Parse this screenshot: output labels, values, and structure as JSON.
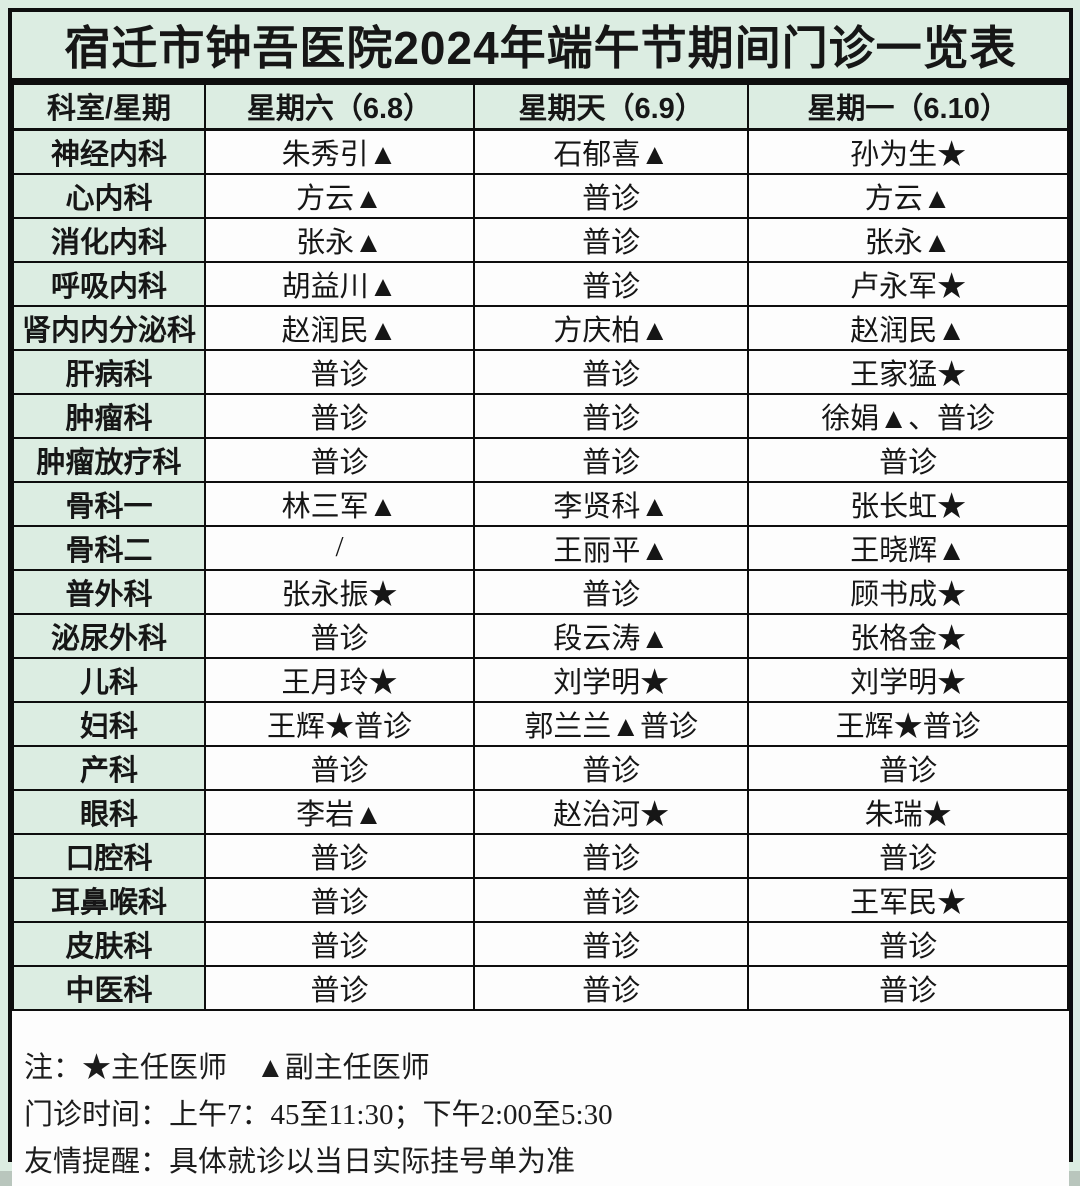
{
  "title": "宿迁市钟吾医院2024年端午节期间门诊一览表",
  "table": {
    "headers": {
      "dept": "科室/星期",
      "saturday": "星期六（6.8）",
      "sunday": "星期天（6.9）",
      "monday": "星期一（6.10）"
    },
    "rows": [
      {
        "dept": "神经内科",
        "cells": [
          "朱秀引▲",
          "石郁喜▲",
          "孙为生★"
        ]
      },
      {
        "dept": "心内科",
        "cells": [
          "方云▲",
          "普诊",
          "方云▲"
        ]
      },
      {
        "dept": "消化内科",
        "cells": [
          "张永▲",
          "普诊",
          "张永▲"
        ]
      },
      {
        "dept": "呼吸内科",
        "cells": [
          "胡益川▲",
          "普诊",
          "卢永军★"
        ]
      },
      {
        "dept": "肾内内分泌科",
        "cells": [
          "赵润民▲",
          "方庆柏▲",
          "赵润民▲"
        ]
      },
      {
        "dept": "肝病科",
        "cells": [
          "普诊",
          "普诊",
          "王家猛★"
        ]
      },
      {
        "dept": "肿瘤科",
        "cells": [
          "普诊",
          "普诊",
          "徐娟▲、普诊"
        ]
      },
      {
        "dept": "肿瘤放疗科",
        "cells": [
          "普诊",
          "普诊",
          "普诊"
        ]
      },
      {
        "dept": "骨科一",
        "cells": [
          "林三军▲",
          "李贤科▲",
          "张长虹★"
        ]
      },
      {
        "dept": "骨科二",
        "cells": [
          "/",
          "王丽平▲",
          "王晓辉▲"
        ]
      },
      {
        "dept": "普外科",
        "cells": [
          "张永振★",
          "普诊",
          "顾书成★"
        ]
      },
      {
        "dept": "泌尿外科",
        "cells": [
          "普诊",
          "段云涛▲",
          "张格金★"
        ]
      },
      {
        "dept": "儿科",
        "cells": [
          "王月玲★",
          "刘学明★",
          "刘学明★"
        ]
      },
      {
        "dept": "妇科",
        "cells": [
          "王辉★普诊",
          "郭兰兰▲普诊",
          "王辉★普诊"
        ]
      },
      {
        "dept": "产科",
        "cells": [
          "普诊",
          "普诊",
          "普诊"
        ]
      },
      {
        "dept": "眼科",
        "cells": [
          "李岩▲",
          "赵治河★",
          "朱瑞★"
        ]
      },
      {
        "dept": "口腔科",
        "cells": [
          "普诊",
          "普诊",
          "普诊"
        ]
      },
      {
        "dept": "耳鼻喉科",
        "cells": [
          "普诊",
          "普诊",
          "王军民★"
        ]
      },
      {
        "dept": "皮肤科",
        "cells": [
          "普诊",
          "普诊",
          "普诊"
        ]
      },
      {
        "dept": "中医科",
        "cells": [
          "普诊",
          "普诊",
          "普诊"
        ]
      }
    ]
  },
  "legend": {
    "chief_symbol": "★",
    "chief_label": "主任医师",
    "deputy_symbol": "▲",
    "deputy_label": "副主任医师"
  },
  "notes": {
    "legend_line": "注：★主任医师　▲副主任医师",
    "hours_line": "门诊时间：上午7：45至11:30；下午2:00至5:30",
    "reminder_line": "友情提醒：具体就诊以当日实际挂号单为准"
  },
  "colors": {
    "header_green": "#dcede2",
    "cell_white": "#fdfdfd",
    "border_black": "#0e0e0e"
  }
}
